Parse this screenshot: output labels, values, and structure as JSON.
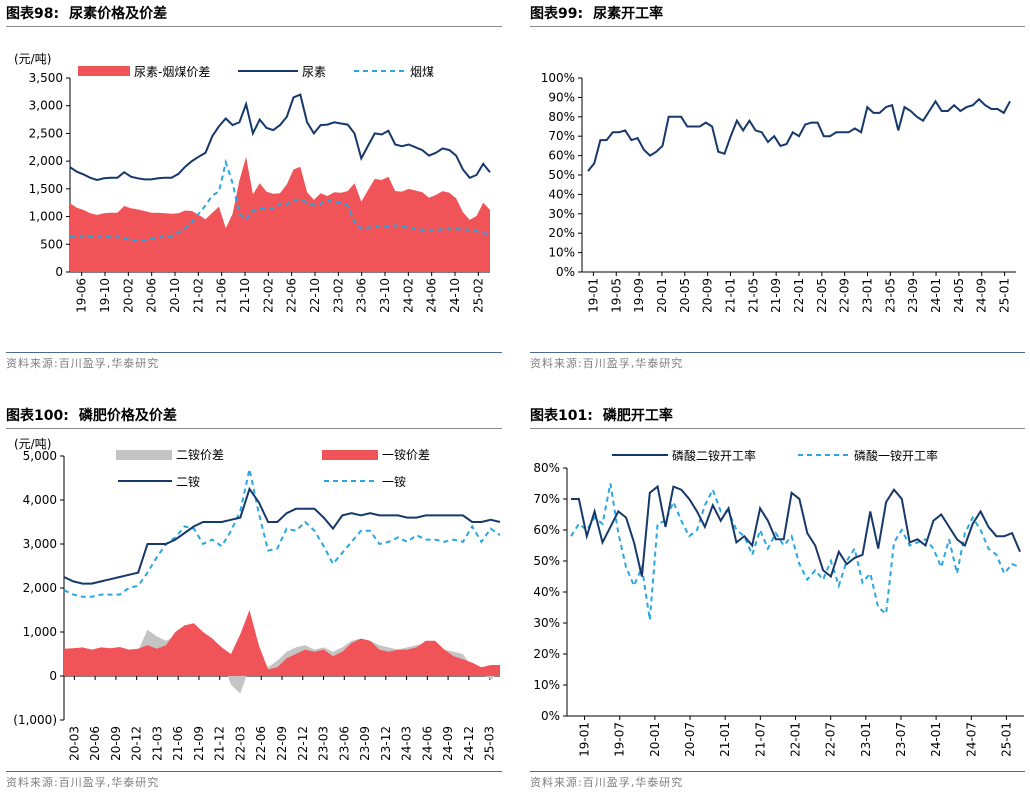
{
  "colors": {
    "urea_price": "#16386b",
    "spread": "#f05458",
    "coal": "#2aa7e0",
    "gray": "#c4c4c4",
    "text": "#000000"
  },
  "panels": [
    {
      "title_prefix": "图表",
      "title_num": "98:",
      "title_text": "尿素价格及价差",
      "source": "资料来源:百川盈孚,华泰研究"
    },
    {
      "title_prefix": "图表",
      "title_num": "99:",
      "title_text": "尿素开工率",
      "source": "资料来源:百川盈孚,华泰研究"
    },
    {
      "title_prefix": "图表",
      "title_num": "100:",
      "title_text": "磷肥价格及价差",
      "source": "资料来源:百川盈孚,华泰研究"
    },
    {
      "title_prefix": "图表",
      "title_num": "101:",
      "title_text": "磷肥开工率",
      "source": "资料来源:百川盈孚,华泰研究"
    }
  ],
  "chart_data": [
    {
      "type": "line+area",
      "title": "尿素价格及价差",
      "ylabel": "(元/吨)",
      "ylim": [
        0,
        3500
      ],
      "yticks": [
        "0",
        "500",
        "1,000",
        "1,500",
        "2,000",
        "2,500",
        "3,000",
        "3,500"
      ],
      "ytick_values": [
        0,
        500,
        1000,
        1500,
        2000,
        2500,
        3000,
        3500
      ],
      "xticks": [
        "19-06",
        "19-10",
        "20-02",
        "20-06",
        "20-10",
        "21-02",
        "21-06",
        "21-10",
        "22-02",
        "22-06",
        "22-10",
        "23-02",
        "23-06",
        "23-10",
        "24-02",
        "24-06",
        "24-10",
        "25-02"
      ],
      "legend": [
        "尿素-烟煤价差",
        "尿素",
        "烟煤"
      ],
      "series": [
        {
          "name": "尿素",
          "kind": "line",
          "values": [
            1890,
            1810,
            1760,
            1700,
            1660,
            1690,
            1700,
            1700,
            1800,
            1720,
            1690,
            1670,
            1670,
            1690,
            1700,
            1700,
            1770,
            1900,
            2000,
            2080,
            2150,
            2450,
            2630,
            2770,
            2650,
            2700,
            3030,
            2500,
            2750,
            2600,
            2560,
            2650,
            2800,
            3150,
            3200,
            2700,
            2500,
            2650,
            2660,
            2700,
            2680,
            2660,
            2500,
            2050,
            2280,
            2500,
            2480,
            2550,
            2300,
            2270,
            2300,
            2250,
            2200,
            2100,
            2150,
            2230,
            2200,
            2100,
            1850,
            1700,
            1750,
            1950,
            1800
          ]
        },
        {
          "name": "烟煤",
          "kind": "dashed",
          "values": [
            650,
            650,
            640,
            640,
            630,
            630,
            630,
            630,
            610,
            570,
            560,
            570,
            600,
            620,
            640,
            650,
            710,
            790,
            900,
            1050,
            1200,
            1380,
            1450,
            1980,
            1600,
            1050,
            950,
            1100,
            1150,
            1150,
            1150,
            1230,
            1220,
            1300,
            1300,
            1260,
            1200,
            1230,
            1290,
            1260,
            1250,
            1200,
            900,
            780,
            800,
            820,
            820,
            830,
            840,
            820,
            800,
            780,
            760,
            760,
            760,
            770,
            770,
            770,
            770,
            760,
            740,
            700,
            680
          ]
        },
        {
          "name": "尿素-烟煤价差",
          "kind": "area",
          "values": [
            1240,
            1160,
            1120,
            1060,
            1030,
            1060,
            1070,
            1070,
            1190,
            1150,
            1130,
            1100,
            1070,
            1070,
            1060,
            1050,
            1060,
            1110,
            1100,
            1030,
            950,
            1070,
            1180,
            790,
            1050,
            1650,
            2080,
            1400,
            1600,
            1450,
            1410,
            1420,
            1580,
            1850,
            1900,
            1440,
            1300,
            1420,
            1370,
            1440,
            1430,
            1460,
            1600,
            1270,
            1480,
            1680,
            1660,
            1720,
            1460,
            1450,
            1500,
            1470,
            1440,
            1340,
            1390,
            1460,
            1430,
            1330,
            1080,
            940,
            1010,
            1250,
            1120
          ]
        }
      ]
    },
    {
      "type": "line",
      "title": "尿素开工率",
      "ylim": [
        0,
        100
      ],
      "yticks": [
        "0%",
        "10%",
        "20%",
        "30%",
        "40%",
        "50%",
        "60%",
        "70%",
        "80%",
        "90%",
        "100%"
      ],
      "ytick_values": [
        0,
        10,
        20,
        30,
        40,
        50,
        60,
        70,
        80,
        90,
        100
      ],
      "xticks": [
        "19-01",
        "19-05",
        "19-09",
        "20-01",
        "20-05",
        "20-09",
        "21-01",
        "21-05",
        "21-09",
        "22-01",
        "22-05",
        "22-09",
        "23-01",
        "23-05",
        "23-09",
        "24-01",
        "24-05",
        "24-09",
        "25-01"
      ],
      "series": [
        {
          "name": "尿素开工率",
          "values": [
            52,
            56,
            68,
            68,
            72,
            72,
            73,
            68,
            69,
            63,
            60,
            62,
            65,
            80,
            80,
            80,
            75,
            75,
            75,
            77,
            75,
            62,
            61,
            70,
            78,
            73,
            78,
            73,
            72,
            67,
            70,
            65,
            66,
            72,
            70,
            76,
            77,
            77,
            70,
            70,
            72,
            72,
            72,
            74,
            72,
            85,
            82,
            82,
            85,
            86,
            73,
            85,
            83,
            80,
            78,
            83,
            88,
            83,
            83,
            86,
            83,
            85,
            86,
            89,
            86,
            84,
            84,
            82,
            88
          ]
        }
      ]
    },
    {
      "type": "line+area",
      "title": "磷肥价格及价差",
      "ylabel": "(元/吨)",
      "ylim": [
        -1000,
        5000
      ],
      "yticks": [
        "(1,000)",
        "0",
        "1,000",
        "2,000",
        "3,000",
        "4,000",
        "5,000"
      ],
      "ytick_values": [
        -1000,
        0,
        1000,
        2000,
        3000,
        4000,
        5000
      ],
      "xticks": [
        "20-03",
        "20-06",
        "20-09",
        "20-12",
        "21-03",
        "21-06",
        "21-09",
        "21-12",
        "22-03",
        "22-06",
        "22-09",
        "22-12",
        "23-03",
        "23-06",
        "23-09",
        "23-12",
        "24-03",
        "24-06",
        "24-09",
        "24-12",
        "25-03"
      ],
      "legend": [
        "二铵价差",
        "一铵价差",
        "二铵",
        "一铵"
      ],
      "series": [
        {
          "name": "二铵",
          "kind": "line",
          "values": [
            2250,
            2150,
            2100,
            2100,
            2150,
            2200,
            2250,
            2300,
            2350,
            3000,
            3000,
            3000,
            3100,
            3250,
            3400,
            3500,
            3500,
            3500,
            3550,
            3600,
            4250,
            3950,
            3500,
            3500,
            3700,
            3800,
            3800,
            3800,
            3600,
            3350,
            3650,
            3700,
            3650,
            3700,
            3650,
            3650,
            3650,
            3600,
            3600,
            3650,
            3650,
            3650,
            3650,
            3650,
            3500,
            3500,
            3550,
            3500
          ]
        },
        {
          "name": "一铵",
          "kind": "dashed",
          "values": [
            1950,
            1850,
            1800,
            1800,
            1850,
            1850,
            1850,
            2000,
            2050,
            2350,
            2700,
            3000,
            3150,
            3400,
            3350,
            3000,
            3100,
            2950,
            3300,
            3750,
            4700,
            3700,
            2850,
            2900,
            3350,
            3300,
            3500,
            3300,
            2950,
            2550,
            2800,
            3050,
            3300,
            3300,
            3000,
            3050,
            3150,
            3050,
            3200,
            3100,
            3100,
            3050,
            3100,
            3050,
            3400,
            3050,
            3350,
            3200
          ]
        },
        {
          "name": "二铵价差",
          "kind": "gray",
          "values": [
            600,
            580,
            570,
            560,
            570,
            560,
            570,
            560,
            580,
            1050,
            900,
            800,
            900,
            1000,
            1000,
            750,
            600,
            400,
            -200,
            -400,
            200,
            500,
            200,
            350,
            550,
            650,
            700,
            600,
            650,
            550,
            650,
            800,
            850,
            800,
            700,
            650,
            600,
            650,
            700,
            750,
            700,
            600,
            550,
            500,
            200,
            100,
            -100,
            150
          ]
        },
        {
          "name": "一铵价差",
          "kind": "area",
          "values": [
            620,
            630,
            650,
            600,
            650,
            630,
            660,
            600,
            620,
            700,
            620,
            700,
            1000,
            1150,
            1200,
            1000,
            850,
            650,
            500,
            950,
            1500,
            700,
            150,
            200,
            400,
            500,
            600,
            550,
            600,
            450,
            550,
            750,
            850,
            800,
            600,
            550,
            600,
            600,
            650,
            800,
            800,
            600,
            450,
            380,
            300,
            200,
            250,
            250
          ]
        }
      ]
    },
    {
      "type": "line",
      "title": "磷肥开工率",
      "ylim": [
        0,
        80
      ],
      "yticks": [
        "0%",
        "10%",
        "20%",
        "30%",
        "40%",
        "50%",
        "60%",
        "70%",
        "80%"
      ],
      "ytick_values": [
        0,
        10,
        20,
        30,
        40,
        50,
        60,
        70,
        80
      ],
      "xticks": [
        "19-01",
        "19-07",
        "20-01",
        "20-07",
        "21-01",
        "21-07",
        "22-01",
        "22-07",
        "23-01",
        "23-07",
        "24-01",
        "24-07",
        "25-01"
      ],
      "legend": [
        "磷酸二铵开工率",
        "磷酸一铵开工率"
      ],
      "series": [
        {
          "name": "磷酸二铵开工率",
          "kind": "line",
          "values": [
            70,
            70,
            58,
            66,
            56,
            61,
            66,
            64,
            56,
            45,
            72,
            74,
            61,
            74,
            73,
            70,
            66,
            61,
            68,
            63,
            67,
            56,
            58,
            55,
            67,
            63,
            57,
            57,
            72,
            70,
            59,
            55,
            47,
            45,
            53,
            49,
            51,
            52,
            66,
            54,
            69,
            73,
            70,
            56,
            57,
            55,
            63,
            65,
            61,
            57,
            55,
            62,
            66,
            61,
            58,
            58,
            59,
            53
          ]
        },
        {
          "name": "磷酸一铵开工率",
          "kind": "dashed",
          "values": [
            58,
            62,
            60,
            64,
            62,
            75,
            59,
            48,
            42,
            48,
            31,
            62,
            63,
            69,
            63,
            58,
            60,
            68,
            73,
            66,
            66,
            60,
            58,
            52,
            60,
            54,
            59,
            55,
            58,
            49,
            44,
            47,
            44,
            50,
            42,
            50,
            54,
            43,
            46,
            35,
            33,
            56,
            60,
            55,
            56,
            57,
            54,
            48,
            57,
            46,
            59,
            64,
            60,
            54,
            52,
            46,
            49,
            48
          ]
        }
      ]
    }
  ]
}
